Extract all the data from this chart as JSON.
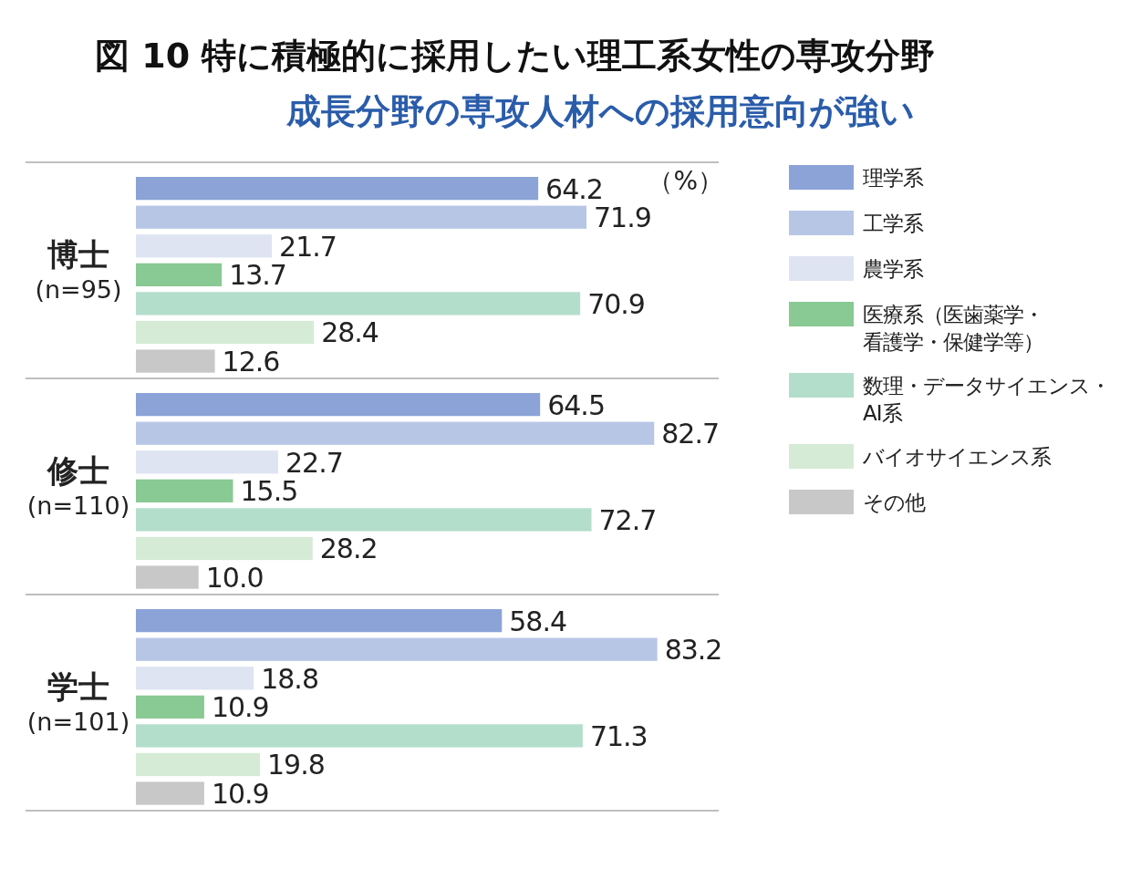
{
  "chart_data": {
    "type": "bar",
    "orientation": "horizontal",
    "title": "図 10  特に積極的に採用したい理工系女性の専攻分野",
    "subtitle": "成長分野の専攻人材への採用意向が強い",
    "xlabel": "（%）",
    "categories": [
      "博士\n(n=95)",
      "修士\n(n=110)",
      "学士\n(n=101)"
    ],
    "xlim": [
      0,
      93
    ],
    "data_labels": true,
    "legend": "right",
    "series": [
      {
        "name": "理学系",
        "color": "#8ba3d6",
        "values": [
          64.2,
          64.5,
          58.4
        ]
      },
      {
        "name": "工学系",
        "color": "#b8c6e6",
        "values": [
          71.9,
          82.7,
          83.2
        ]
      },
      {
        "name": "農学系",
        "color": "#dfe4f3",
        "values": [
          21.7,
          22.7,
          18.8
        ]
      },
      {
        "name": "医療系（医歯薬学・看護学・保健学等）",
        "color": "#89c993",
        "values": [
          13.7,
          15.5,
          10.9
        ]
      },
      {
        "name": "数理・データサイエンス・AI系",
        "color": "#b3decb",
        "values": [
          70.9,
          72.7,
          71.3
        ]
      },
      {
        "name": "バイオサイエンス系",
        "color": "#d5ebd6",
        "values": [
          28.4,
          28.2,
          19.8
        ]
      },
      {
        "name": "その他",
        "color": "#c8c8c8",
        "values": [
          12.6,
          10.0,
          10.9
        ],
        "value_labels": [
          "12.6",
          "10.0",
          "10.9"
        ]
      }
    ]
  }
}
